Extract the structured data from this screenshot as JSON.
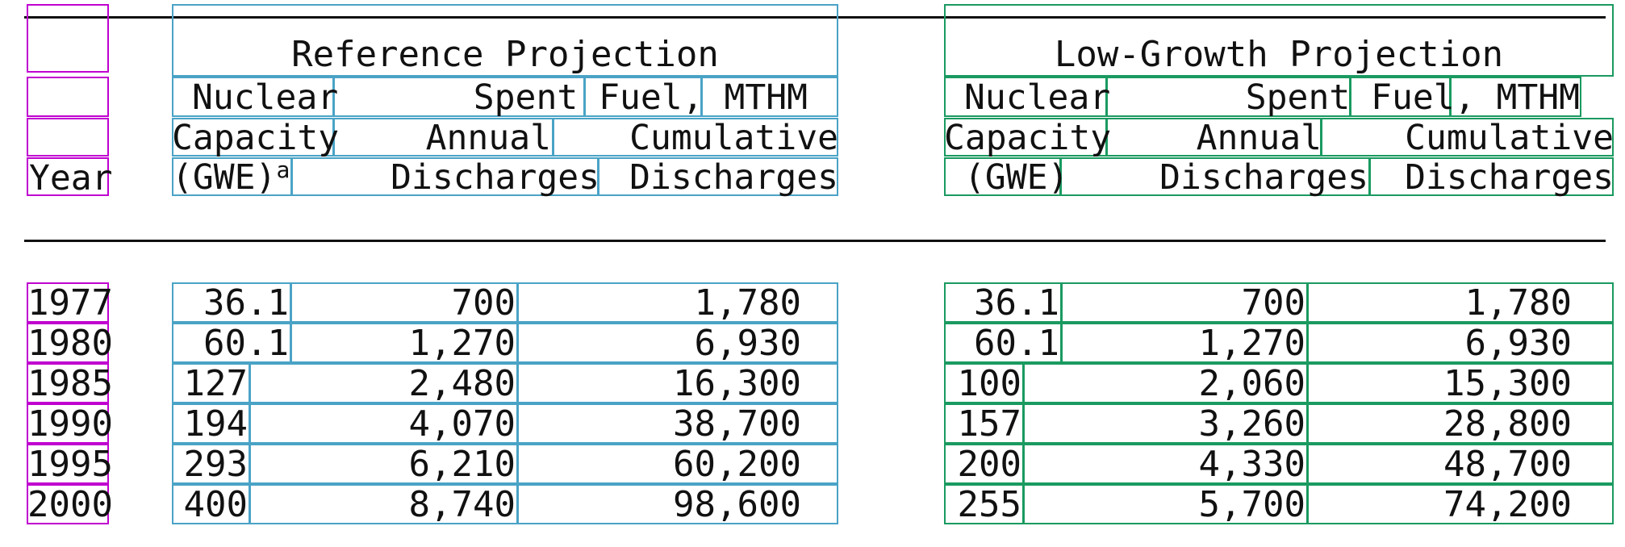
{
  "header": {
    "year": "Year",
    "reference_title": "Reference Projection",
    "lowgrowth_title": "Low-Growth Projection",
    "nuclear": "Nuclear",
    "capacity": "Capacity",
    "gwe_ref": "(GWE)",
    "gwe_ref_note": "a",
    "gwe_low": "(GWE)",
    "spent_fuel": "Spent Fuel, MTHM",
    "annual": "Annual",
    "cumulative": "Cumulative",
    "discharges": "Discharges"
  },
  "rows": [
    {
      "year": "1977",
      "ref_cap": "36.1",
      "ref_annual": "700",
      "ref_cum": "1,780",
      "low_cap": "36.1",
      "low_annual": "700",
      "low_cum": "1,780"
    },
    {
      "year": "1980",
      "ref_cap": "60.1",
      "ref_annual": "1,270",
      "ref_cum": "6,930",
      "low_cap": "60.1",
      "low_annual": "1,270",
      "low_cum": "6,930"
    },
    {
      "year": "1985",
      "ref_cap": "127",
      "ref_annual": "2,480",
      "ref_cum": "16,300",
      "low_cap": "100",
      "low_annual": "2,060",
      "low_cum": "15,300"
    },
    {
      "year": "1990",
      "ref_cap": "194",
      "ref_annual": "4,070",
      "ref_cum": "38,700",
      "low_cap": "157",
      "low_annual": "3,260",
      "low_cum": "28,800"
    },
    {
      "year": "1995",
      "ref_cap": "293",
      "ref_annual": "6,210",
      "ref_cum": "60,200",
      "low_cap": "200",
      "low_annual": "4,330",
      "low_cum": "48,700"
    },
    {
      "year": "2000",
      "ref_cap": "400",
      "ref_annual": "8,740",
      "ref_cum": "98,600",
      "low_cap": "255",
      "low_annual": "5,700",
      "low_cum": "74,200"
    }
  ],
  "colors": {
    "year_box": "#c000d0",
    "reference_box": "#4aa3c6",
    "lowgrowth_box": "#1a9a60"
  }
}
